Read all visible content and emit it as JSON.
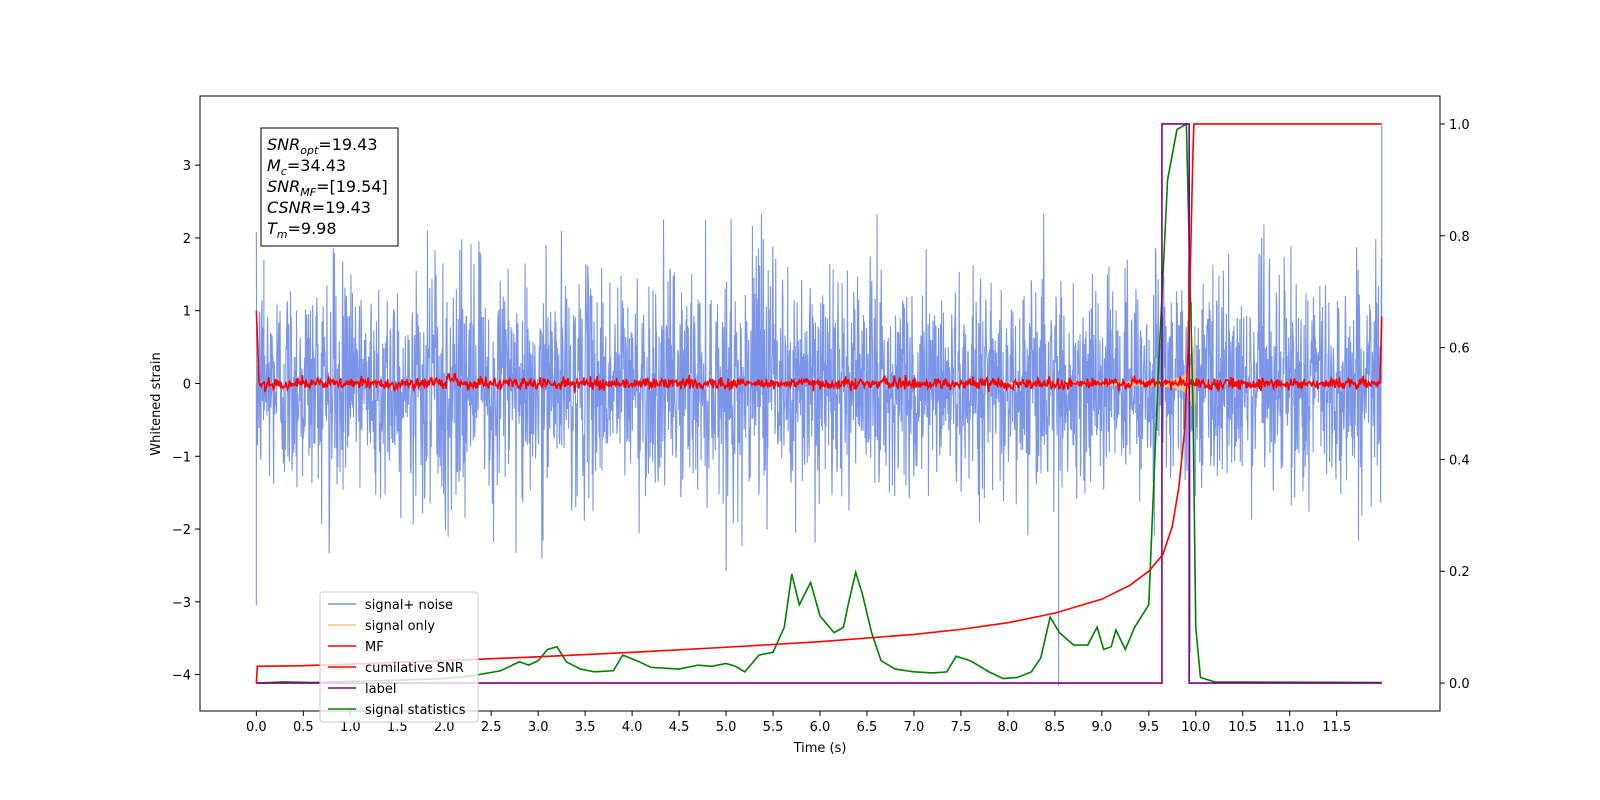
{
  "chart_data": {
    "type": "line",
    "xlabel": "Time (s)",
    "ylabel": "Whitened strain",
    "xlim": [
      -0.6,
      12.6
    ],
    "ylim_left": [
      -4.5,
      3.95
    ],
    "ylim_right": [
      -0.05,
      1.05
    ],
    "x_ticks": [
      "0.0",
      "0.5",
      "1.0",
      "1.5",
      "2.0",
      "2.5",
      "3.0",
      "3.5",
      "4.0",
      "4.5",
      "5.0",
      "5.5",
      "6.0",
      "6.5",
      "7.0",
      "7.5",
      "8.0",
      "8.5",
      "9.0",
      "9.5",
      "10.0",
      "10.5",
      "11.0",
      "11.5"
    ],
    "x_tick_values": [
      0,
      0.5,
      1,
      1.5,
      2,
      2.5,
      3,
      3.5,
      4,
      4.5,
      5,
      5.5,
      6,
      6.5,
      7,
      7.5,
      8,
      8.5,
      9,
      9.5,
      10,
      10.5,
      11,
      11.5
    ],
    "y_left_ticks": [
      3,
      2,
      1,
      0,
      -1,
      -2,
      -3,
      -4
    ],
    "y_left_tick_labels": [
      "3",
      "2",
      "1",
      "0",
      "−1",
      "−2",
      "−3",
      "−4"
    ],
    "y_right_ticks": [
      1.0,
      0.8,
      0.6,
      0.4,
      0.2,
      0.0
    ],
    "y_right_tick_labels": [
      "1.0",
      "0.8",
      "0.6",
      "0.4",
      "0.2",
      "0.0"
    ],
    "legend_position": "lower-left",
    "annotation": {
      "lines": [
        {
          "sym": "SNR",
          "sub": "opt",
          "rest": "=19.43"
        },
        {
          "sym": "M",
          "sub": "c",
          "rest": "=34.43"
        },
        {
          "sym": "SNR",
          "sub": "MF",
          "rest": "=[19.54]"
        },
        {
          "sym": "CSNR",
          "sub": "",
          "rest": "=19.43"
        },
        {
          "sym": "T",
          "sub": "m",
          "rest": "=9.98"
        }
      ]
    },
    "series": [
      {
        "name": "signal+ noise",
        "color": "#7b96e8",
        "axis": "left",
        "description_values": {
          "noise_amplitude_range": [
            -2.6,
            2.4
          ],
          "x_range": [
            0,
            11.98
          ],
          "spikes": [
            [
              0.0,
              -3.05
            ],
            [
              8.54,
              -4.15
            ],
            [
              9.94,
              -3.7
            ],
            [
              11.98,
              3.55
            ],
            [
              0.08,
              1.7
            ]
          ]
        }
      },
      {
        "name": "signal only",
        "color": "#f5c77e",
        "axis": "left",
        "description_values": {
          "chirp_peak_time": 9.98,
          "peak_amplitude": 1.2,
          "x_range": [
            0,
            11.98
          ]
        }
      },
      {
        "name": "MF",
        "color": "#ff0000",
        "axis": "left",
        "description_values": {
          "start": [
            0.0,
            1.0
          ],
          "baseline": 0.0,
          "noise": 0.04,
          "end": [
            11.98,
            0.92
          ]
        }
      },
      {
        "name": "cumilative SNR",
        "color": "#ff0000",
        "axis": "right",
        "points": [
          [
            0.0,
            0.0
          ],
          [
            0.01,
            0.03
          ],
          [
            0.5,
            0.031
          ],
          [
            1,
            0.034
          ],
          [
            2,
            0.04
          ],
          [
            3,
            0.047
          ],
          [
            4,
            0.055
          ],
          [
            5,
            0.064
          ],
          [
            6,
            0.074
          ],
          [
            7,
            0.087
          ],
          [
            7.5,
            0.096
          ],
          [
            8,
            0.108
          ],
          [
            8.5,
            0.125
          ],
          [
            9,
            0.15
          ],
          [
            9.3,
            0.175
          ],
          [
            9.5,
            0.2
          ],
          [
            9.65,
            0.23
          ],
          [
            9.75,
            0.28
          ],
          [
            9.82,
            0.35
          ],
          [
            9.88,
            0.45
          ],
          [
            9.92,
            0.6
          ],
          [
            9.95,
            0.8
          ],
          [
            9.97,
            0.95
          ],
          [
            9.98,
            1.0
          ],
          [
            11.98,
            1.0
          ]
        ]
      },
      {
        "name": "label",
        "color": "#800080",
        "axis": "right",
        "points": [
          [
            0.0,
            0.0
          ],
          [
            9.64,
            0.0
          ],
          [
            9.64,
            1.0
          ],
          [
            9.93,
            1.0
          ],
          [
            9.93,
            0.0
          ],
          [
            11.98,
            0.0
          ]
        ]
      },
      {
        "name": "signal statistics",
        "color": "#008000",
        "axis": "right",
        "points": [
          [
            0.0,
            0.0
          ],
          [
            0.3,
            0.002
          ],
          [
            0.6,
            0.001
          ],
          [
            1.0,
            0.003
          ],
          [
            1.5,
            0.005
          ],
          [
            2.0,
            0.008
          ],
          [
            2.3,
            0.013
          ],
          [
            2.6,
            0.022
          ],
          [
            2.8,
            0.038
          ],
          [
            2.9,
            0.032
          ],
          [
            3.0,
            0.04
          ],
          [
            3.1,
            0.06
          ],
          [
            3.2,
            0.065
          ],
          [
            3.3,
            0.038
          ],
          [
            3.45,
            0.025
          ],
          [
            3.6,
            0.02
          ],
          [
            3.8,
            0.022
          ],
          [
            3.9,
            0.05
          ],
          [
            4.05,
            0.04
          ],
          [
            4.2,
            0.028
          ],
          [
            4.5,
            0.025
          ],
          [
            4.7,
            0.032
          ],
          [
            4.85,
            0.03
          ],
          [
            5.0,
            0.035
          ],
          [
            5.1,
            0.03
          ],
          [
            5.2,
            0.02
          ],
          [
            5.35,
            0.05
          ],
          [
            5.5,
            0.055
          ],
          [
            5.62,
            0.1
          ],
          [
            5.7,
            0.195
          ],
          [
            5.78,
            0.14
          ],
          [
            5.9,
            0.18
          ],
          [
            6.0,
            0.12
          ],
          [
            6.15,
            0.09
          ],
          [
            6.25,
            0.1
          ],
          [
            6.3,
            0.14
          ],
          [
            6.38,
            0.198
          ],
          [
            6.45,
            0.16
          ],
          [
            6.55,
            0.09
          ],
          [
            6.65,
            0.04
          ],
          [
            6.8,
            0.025
          ],
          [
            7.0,
            0.02
          ],
          [
            7.2,
            0.018
          ],
          [
            7.35,
            0.02
          ],
          [
            7.45,
            0.048
          ],
          [
            7.6,
            0.04
          ],
          [
            7.8,
            0.02
          ],
          [
            7.95,
            0.008
          ],
          [
            8.1,
            0.01
          ],
          [
            8.25,
            0.02
          ],
          [
            8.35,
            0.045
          ],
          [
            8.45,
            0.118
          ],
          [
            8.55,
            0.09
          ],
          [
            8.7,
            0.068
          ],
          [
            8.85,
            0.068
          ],
          [
            8.95,
            0.1
          ],
          [
            9.02,
            0.06
          ],
          [
            9.1,
            0.065
          ],
          [
            9.15,
            0.095
          ],
          [
            9.25,
            0.06
          ],
          [
            9.35,
            0.1
          ],
          [
            9.5,
            0.14
          ],
          [
            9.6,
            0.55
          ],
          [
            9.7,
            0.9
          ],
          [
            9.8,
            0.99
          ],
          [
            9.9,
            1.0
          ],
          [
            9.97,
            0.5
          ],
          [
            10.0,
            0.1
          ],
          [
            10.05,
            0.01
          ],
          [
            10.2,
            0.002
          ],
          [
            11.98,
            0.001
          ]
        ]
      }
    ]
  }
}
